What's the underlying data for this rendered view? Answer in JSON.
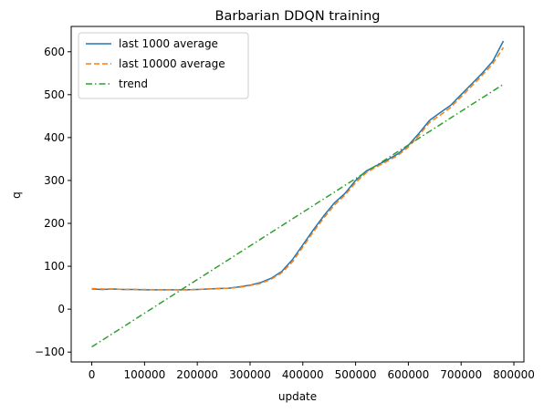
{
  "chart_data": {
    "type": "line",
    "title": "Barbarian DDQN training",
    "xlabel": "update",
    "ylabel": "q",
    "xlim": [
      -39000,
      819000
    ],
    "ylim": [
      -123,
      659
    ],
    "xticks": [
      0,
      100000,
      200000,
      300000,
      400000,
      500000,
      600000,
      700000,
      800000
    ],
    "yticks": [
      -100,
      0,
      100,
      200,
      300,
      400,
      500,
      600
    ],
    "grid": false,
    "legend_position": "upper-left",
    "series": [
      {
        "name": "last 1000 average",
        "color": "#1f77b4",
        "style": "solid",
        "x": [
          0,
          20000,
          40000,
          60000,
          80000,
          100000,
          120000,
          140000,
          160000,
          180000,
          200000,
          220000,
          240000,
          260000,
          280000,
          300000,
          320000,
          340000,
          360000,
          380000,
          400000,
          420000,
          440000,
          460000,
          480000,
          500000,
          520000,
          540000,
          560000,
          580000,
          600000,
          620000,
          640000,
          660000,
          680000,
          700000,
          720000,
          740000,
          760000,
          780000
        ],
        "y": [
          47,
          46,
          47,
          46,
          46,
          45,
          45,
          45,
          45,
          45,
          46,
          47,
          48,
          49,
          52,
          56,
          62,
          72,
          88,
          115,
          150,
          185,
          218,
          248,
          270,
          300,
          322,
          335,
          348,
          362,
          382,
          410,
          440,
          458,
          475,
          500,
          525,
          550,
          578,
          625
        ]
      },
      {
        "name": "last 10000 average",
        "color": "#ff7f0e",
        "style": "dashed",
        "x": [
          0,
          20000,
          40000,
          60000,
          80000,
          100000,
          120000,
          140000,
          160000,
          180000,
          200000,
          220000,
          240000,
          260000,
          280000,
          300000,
          320000,
          340000,
          360000,
          380000,
          400000,
          420000,
          440000,
          460000,
          480000,
          500000,
          520000,
          540000,
          560000,
          580000,
          600000,
          620000,
          640000,
          660000,
          680000,
          700000,
          720000,
          740000,
          760000,
          780000
        ],
        "y": [
          48,
          47,
          47,
          46,
          46,
          46,
          45,
          45,
          45,
          45,
          46,
          47,
          48,
          49,
          51,
          55,
          60,
          70,
          85,
          110,
          145,
          180,
          213,
          243,
          266,
          295,
          318,
          332,
          345,
          358,
          378,
          405,
          435,
          452,
          470,
          495,
          520,
          545,
          572,
          610
        ]
      },
      {
        "name": "trend",
        "color": "#2ca02c",
        "style": "dashdot",
        "x": [
          0,
          780000
        ],
        "y": [
          -88,
          524
        ]
      }
    ]
  }
}
